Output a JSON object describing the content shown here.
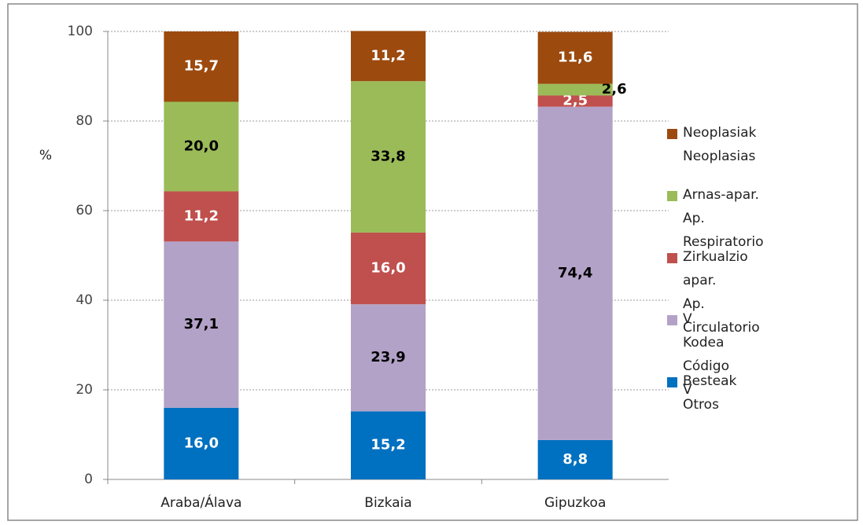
{
  "chart_data": {
    "type": "stacked-bar",
    "ylabel": "%",
    "categories": [
      "Araba/Álava",
      "Bizkaia",
      "Gipuzkoa"
    ],
    "series": [
      {
        "name": "Besteak\nOtros",
        "color": "#0070c0",
        "values": [
          16.0,
          15.2,
          8.8
        ],
        "value_labels": [
          "16,0",
          "15,2",
          "8,8"
        ]
      },
      {
        "name": "V Kodea\nCódigo V",
        "color": "#b3a2c7",
        "values": [
          37.1,
          23.9,
          74.4
        ],
        "value_labels": [
          "37,1",
          "23,9",
          "74,4"
        ]
      },
      {
        "name": "Zirkualzio apar.\nAp. Circulatorio",
        "color": "#c0504d",
        "values": [
          11.2,
          16.0,
          2.5
        ],
        "value_labels": [
          "11,2",
          "16,0",
          "2,5"
        ]
      },
      {
        "name": "Arnas-apar.\nAp. Respiratorio",
        "color": "#9bbb59",
        "values": [
          20.0,
          33.8,
          2.6
        ],
        "value_labels": [
          "20,0",
          "33,8",
          "2,6"
        ]
      },
      {
        "name": "Neoplasiak\nNeoplasias",
        "color": "#9c4a0e",
        "values": [
          15.7,
          11.2,
          11.6
        ],
        "value_labels": [
          "15,7",
          "11,2",
          "11,6"
        ]
      }
    ],
    "ylim": [
      0,
      100
    ],
    "yticks": [
      0,
      20,
      40,
      60,
      80,
      100
    ],
    "grid": true,
    "legend": "right"
  }
}
